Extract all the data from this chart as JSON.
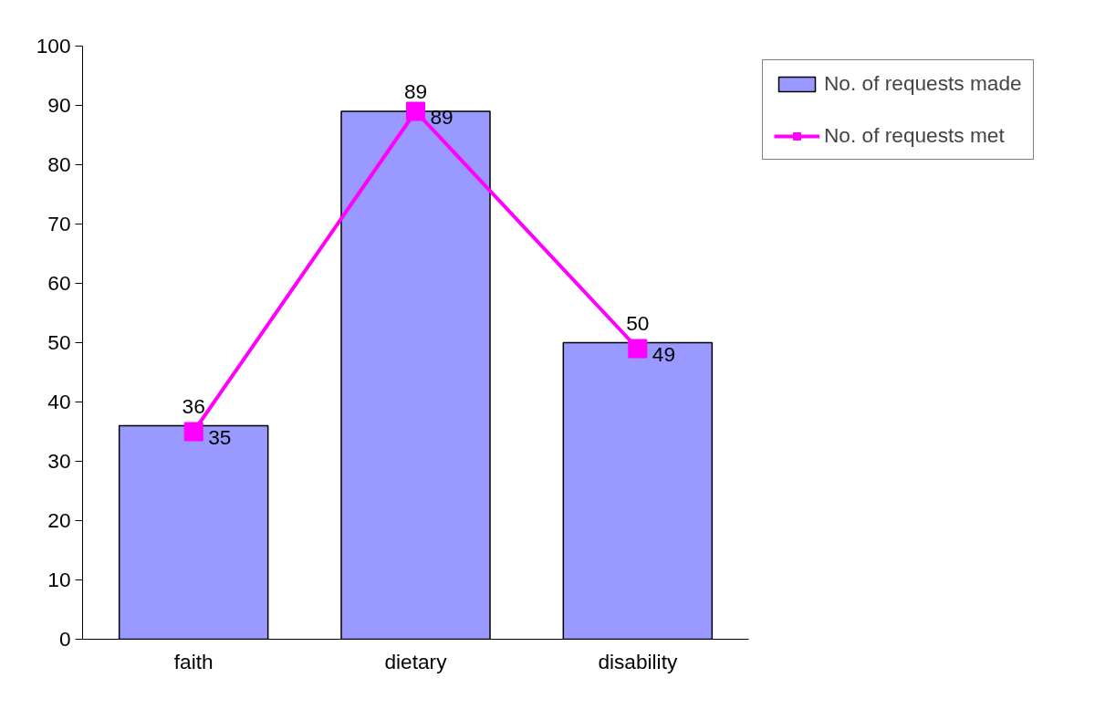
{
  "chart_data": {
    "type": "bar",
    "categories": [
      "faith",
      "dietary",
      "disability"
    ],
    "series": [
      {
        "name": "No. of requests made",
        "color": "#9999ff",
        "values": [
          36,
          89,
          50
        ]
      },
      {
        "name": "No. of requests met",
        "type": "line",
        "color": "#ff00ff",
        "values": [
          35,
          89,
          49
        ],
        "marker": "square"
      }
    ],
    "ylim": [
      0,
      100
    ],
    "yticks": [
      0,
      10,
      20,
      30,
      40,
      50,
      60,
      70,
      80,
      90,
      100
    ],
    "grid": false,
    "legend": "top right",
    "data_labels": true
  }
}
